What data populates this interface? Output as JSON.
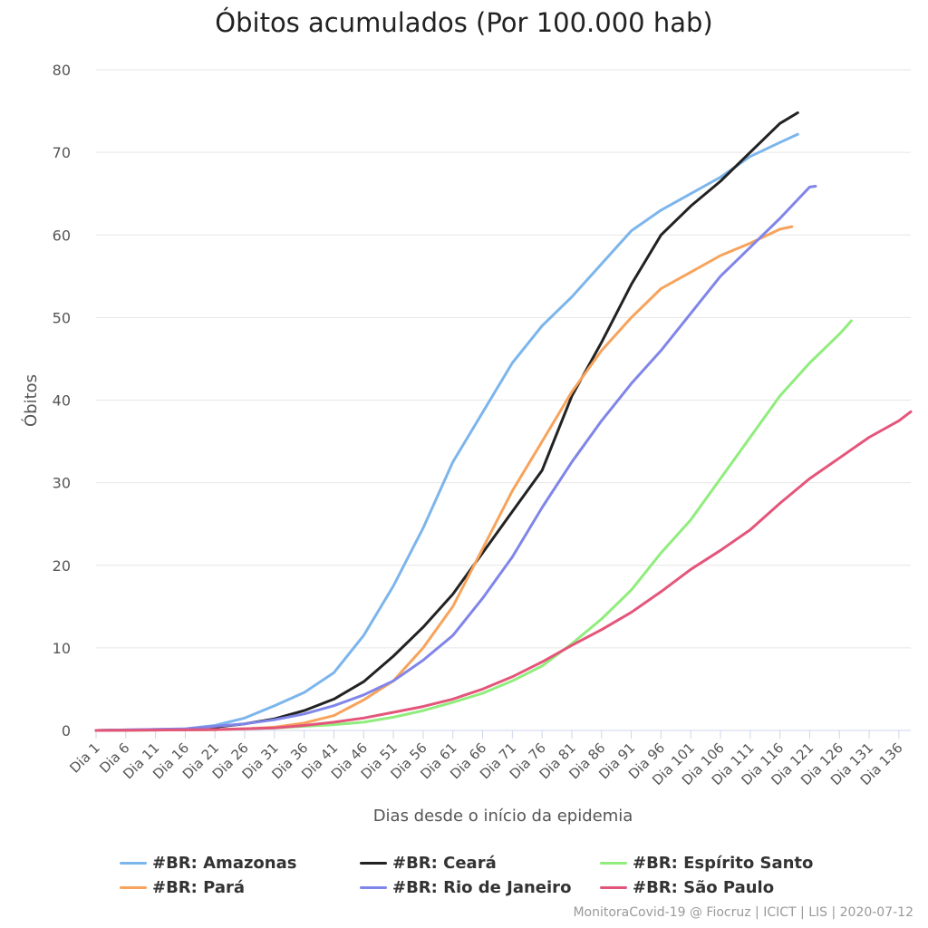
{
  "chart_data": {
    "type": "line",
    "title": "Óbitos acumulados (Por 100.000 hab)",
    "xlabel": "Dias desde o início da epidemia",
    "ylabel": "Óbitos",
    "ylim": [
      0,
      80
    ],
    "yticks": [
      0,
      10,
      20,
      30,
      40,
      50,
      60,
      70,
      80
    ],
    "xlim": [
      1,
      138
    ],
    "xticks": [
      1,
      6,
      11,
      16,
      21,
      26,
      31,
      36,
      41,
      46,
      51,
      56,
      61,
      66,
      71,
      76,
      81,
      86,
      91,
      96,
      101,
      106,
      111,
      116,
      121,
      126,
      131,
      136
    ],
    "xtick_labels": [
      "Dia 1",
      "Dia 6",
      "Dia 11",
      "Dia 16",
      "Dia 21",
      "Dia 26",
      "Dia 31",
      "Dia 36",
      "Dia 41",
      "Dia 46",
      "Dia 51",
      "Dia 56",
      "Dia 61",
      "Dia 66",
      "Dia 71",
      "Dia 76",
      "Dia 81",
      "Dia 86",
      "Dia 91",
      "Dia 96",
      "Dia 101",
      "Dia 106",
      "Dia 111",
      "Dia 116",
      "Dia 121",
      "Dia 126",
      "Dia 131",
      "Dia 136"
    ],
    "grid": true,
    "legend_position": "bottom",
    "series": [
      {
        "name": "#BR: Amazonas",
        "color": "#7cb5ec",
        "x": [
          1,
          16,
          21,
          26,
          31,
          36,
          41,
          46,
          51,
          56,
          61,
          66,
          71,
          76,
          81,
          86,
          91,
          96,
          101,
          106,
          111,
          116,
          119
        ],
        "y": [
          0,
          0.2,
          0.6,
          1.5,
          3.0,
          4.6,
          7.0,
          11.5,
          17.5,
          24.5,
          32.5,
          38.5,
          44.5,
          49.0,
          52.5,
          56.5,
          60.5,
          63.0,
          65.0,
          67.0,
          69.5,
          71.2,
          72.2
        ]
      },
      {
        "name": "#BR: Ceará",
        "color": "#222222",
        "x": [
          1,
          16,
          21,
          26,
          31,
          36,
          41,
          46,
          51,
          56,
          61,
          66,
          71,
          76,
          81,
          86,
          91,
          96,
          101,
          106,
          111,
          116,
          119
        ],
        "y": [
          0,
          0.1,
          0.4,
          0.8,
          1.4,
          2.4,
          3.8,
          5.9,
          9.0,
          12.5,
          16.5,
          21.5,
          26.5,
          31.5,
          40.5,
          47.0,
          54.0,
          60.0,
          63.5,
          66.5,
          70.0,
          73.5,
          74.8
        ]
      },
      {
        "name": "#BR: Espírito Santo",
        "color": "#90ed7d",
        "x": [
          1,
          21,
          31,
          36,
          41,
          46,
          51,
          56,
          61,
          66,
          71,
          76,
          81,
          86,
          91,
          96,
          101,
          106,
          111,
          116,
          121,
          126,
          128
        ],
        "y": [
          0,
          0.1,
          0.3,
          0.5,
          0.7,
          1.0,
          1.6,
          2.4,
          3.4,
          4.5,
          6.0,
          7.8,
          10.5,
          13.5,
          17.0,
          21.5,
          25.5,
          30.5,
          35.5,
          40.5,
          44.5,
          48.0,
          49.6
        ]
      },
      {
        "name": "#BR: Pará",
        "color": "#f7a35c",
        "x": [
          1,
          21,
          26,
          31,
          36,
          41,
          46,
          51,
          56,
          61,
          66,
          71,
          76,
          81,
          86,
          91,
          96,
          101,
          106,
          111,
          116,
          118
        ],
        "y": [
          0,
          0.1,
          0.2,
          0.4,
          0.9,
          1.8,
          3.7,
          6.0,
          10.0,
          15.0,
          22.0,
          29.0,
          35.0,
          41.0,
          46.0,
          50.0,
          53.5,
          55.5,
          57.5,
          59.0,
          60.7,
          61.0
        ]
      },
      {
        "name": "#BR: Rio de Janeiro",
        "color": "#8085e9",
        "x": [
          1,
          16,
          21,
          26,
          31,
          36,
          41,
          46,
          51,
          56,
          61,
          66,
          71,
          76,
          81,
          86,
          91,
          96,
          101,
          106,
          111,
          116,
          121,
          122
        ],
        "y": [
          0,
          0.2,
          0.5,
          0.8,
          1.3,
          2.0,
          3.0,
          4.3,
          6.0,
          8.5,
          11.5,
          16.0,
          21.0,
          27.0,
          32.5,
          37.5,
          42.0,
          46.0,
          50.5,
          55.0,
          58.5,
          62.0,
          65.8,
          65.9
        ]
      },
      {
        "name": "#BR: São Paulo",
        "color": "#e4557a",
        "x": [
          1,
          21,
          31,
          36,
          41,
          46,
          51,
          56,
          61,
          66,
          71,
          76,
          81,
          86,
          91,
          96,
          101,
          106,
          111,
          116,
          121,
          126,
          131,
          136,
          138
        ],
        "y": [
          0,
          0.1,
          0.3,
          0.6,
          1.0,
          1.5,
          2.2,
          2.9,
          3.8,
          5.0,
          6.5,
          8.3,
          10.3,
          12.2,
          14.3,
          16.8,
          19.5,
          21.8,
          24.3,
          27.5,
          30.5,
          33.0,
          35.5,
          37.5,
          38.6
        ]
      }
    ],
    "credits": "MonitoraCovid-19 @ Fiocruz | ICICT | LIS | 2020-07-12"
  }
}
